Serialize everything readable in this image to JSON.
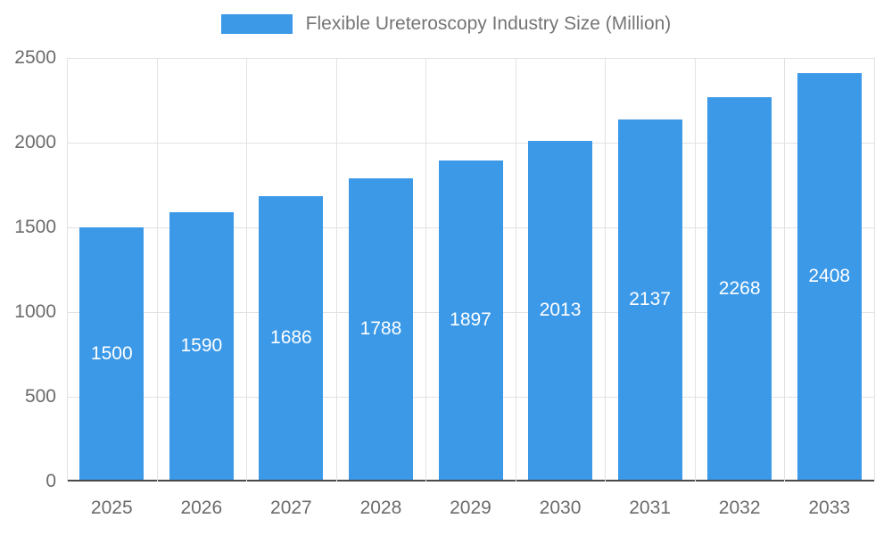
{
  "legend": {
    "label": "Flexible Ureteroscopy Industry Size (Million)"
  },
  "chart_data": {
    "type": "bar",
    "title": "Flexible Ureteroscopy Industry Size (Million)",
    "categories": [
      "2025",
      "2026",
      "2027",
      "2028",
      "2029",
      "2030",
      "2031",
      "2032",
      "2033"
    ],
    "values": [
      1500,
      1590,
      1686,
      1788,
      1897,
      2013,
      2137,
      2268,
      2408
    ],
    "xlabel": "",
    "ylabel": "",
    "ylim": [
      0,
      2500
    ],
    "ytick_step": 500,
    "yticks": [
      0,
      500,
      1000,
      1500,
      2000,
      2500
    ],
    "grid": true,
    "legend_position": "top",
    "bar_color": "#3c99e8",
    "value_label_color": "#ffffff",
    "axis_label_color": "#6b6b6b",
    "title_color": "#757575",
    "gridline_color": "#e2e2e2"
  }
}
